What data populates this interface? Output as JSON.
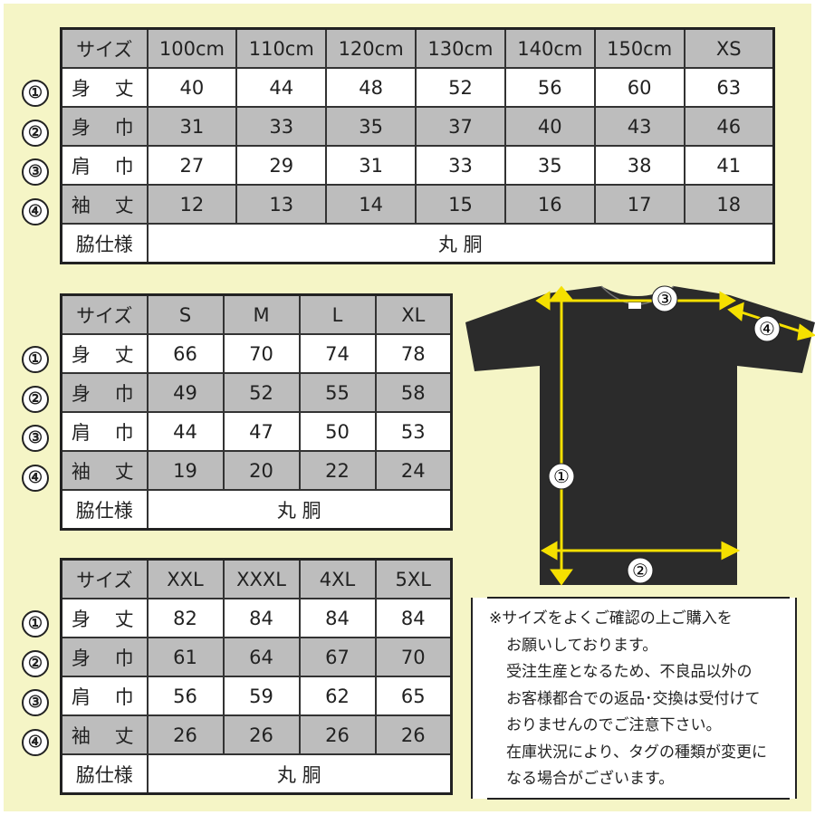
{
  "row_markers": [
    "①",
    "②",
    "③",
    "④"
  ],
  "tables": [
    {
      "header_label": "サイズ",
      "sizes": [
        "100cm",
        "110cm",
        "120cm",
        "130cm",
        "140cm",
        "150cm",
        "XS"
      ],
      "rows": [
        {
          "label": "身 丈",
          "values": [
            "40",
            "44",
            "48",
            "52",
            "56",
            "60",
            "63"
          ]
        },
        {
          "label": "身 巾",
          "values": [
            "31",
            "33",
            "35",
            "37",
            "40",
            "43",
            "46"
          ]
        },
        {
          "label": "肩 巾",
          "values": [
            "27",
            "29",
            "31",
            "33",
            "35",
            "38",
            "41"
          ]
        },
        {
          "label": "袖 丈",
          "values": [
            "12",
            "13",
            "14",
            "15",
            "16",
            "17",
            "18"
          ]
        }
      ],
      "side_label": "脇仕様",
      "side_value": "丸 胴"
    },
    {
      "header_label": "サイズ",
      "sizes": [
        "S",
        "M",
        "L",
        "XL"
      ],
      "rows": [
        {
          "label": "身 丈",
          "values": [
            "66",
            "70",
            "74",
            "78"
          ]
        },
        {
          "label": "身 巾",
          "values": [
            "49",
            "52",
            "55",
            "58"
          ]
        },
        {
          "label": "肩 巾",
          "values": [
            "44",
            "47",
            "50",
            "53"
          ]
        },
        {
          "label": "袖 丈",
          "values": [
            "19",
            "20",
            "22",
            "24"
          ]
        }
      ],
      "side_label": "脇仕様",
      "side_value": "丸 胴"
    },
    {
      "header_label": "サイズ",
      "sizes": [
        "XXL",
        "XXXL",
        "4XL",
        "5XL"
      ],
      "rows": [
        {
          "label": "身 丈",
          "values": [
            "82",
            "84",
            "84",
            "84"
          ]
        },
        {
          "label": "身 巾",
          "values": [
            "61",
            "64",
            "67",
            "70"
          ]
        },
        {
          "label": "肩 巾",
          "values": [
            "56",
            "59",
            "62",
            "65"
          ]
        },
        {
          "label": "袖 丈",
          "values": [
            "26",
            "26",
            "26",
            "26"
          ]
        }
      ],
      "side_label": "脇仕様",
      "side_value": "丸 胴"
    }
  ],
  "diagram": {
    "markers": [
      "①",
      "②",
      "③",
      "④"
    ],
    "shirt_color": "#2b2b2b",
    "arrow_color": "#f5e000"
  },
  "notes": [
    "※サイズをよくご確認の上ご購入を",
    "お願いしております。",
    "受注生産となるため、不良品以外の",
    "お客様都合での返品･交換は受付けて",
    "おりませんのでご注意下さい。",
    "在庫状況により、タグの種類が変更に",
    "なる場合がございます。"
  ]
}
